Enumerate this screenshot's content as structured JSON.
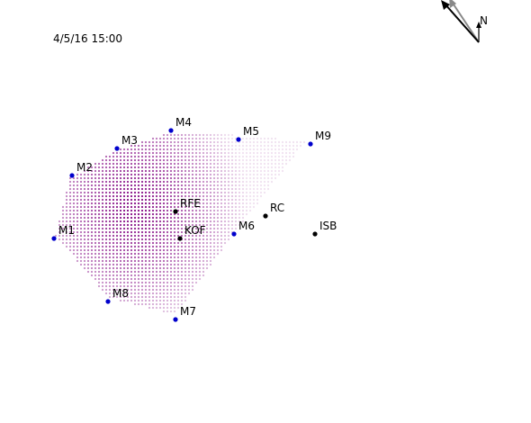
{
  "timestamp": "4/5/16 15:00",
  "compass": {
    "north_label": "N",
    "arrow_colors": [
      "#000000",
      "#888888"
    ]
  },
  "field": {
    "color": "#800080"
  },
  "stations": [
    {
      "id": "M1",
      "color": "#0000cc"
    },
    {
      "id": "M2",
      "color": "#0000cc"
    },
    {
      "id": "M3",
      "color": "#0000cc"
    },
    {
      "id": "M4",
      "color": "#0000cc"
    },
    {
      "id": "M5",
      "color": "#0000cc"
    },
    {
      "id": "M9",
      "color": "#0000cc"
    },
    {
      "id": "M6",
      "color": "#0000cc"
    },
    {
      "id": "M7",
      "color": "#0000cc"
    },
    {
      "id": "M8",
      "color": "#0000cc"
    },
    {
      "id": "RFE",
      "color": "#000000"
    },
    {
      "id": "KOF",
      "color": "#000000"
    },
    {
      "id": "RC",
      "color": "#000000"
    },
    {
      "id": "ISB",
      "color": "#000000"
    }
  ]
}
